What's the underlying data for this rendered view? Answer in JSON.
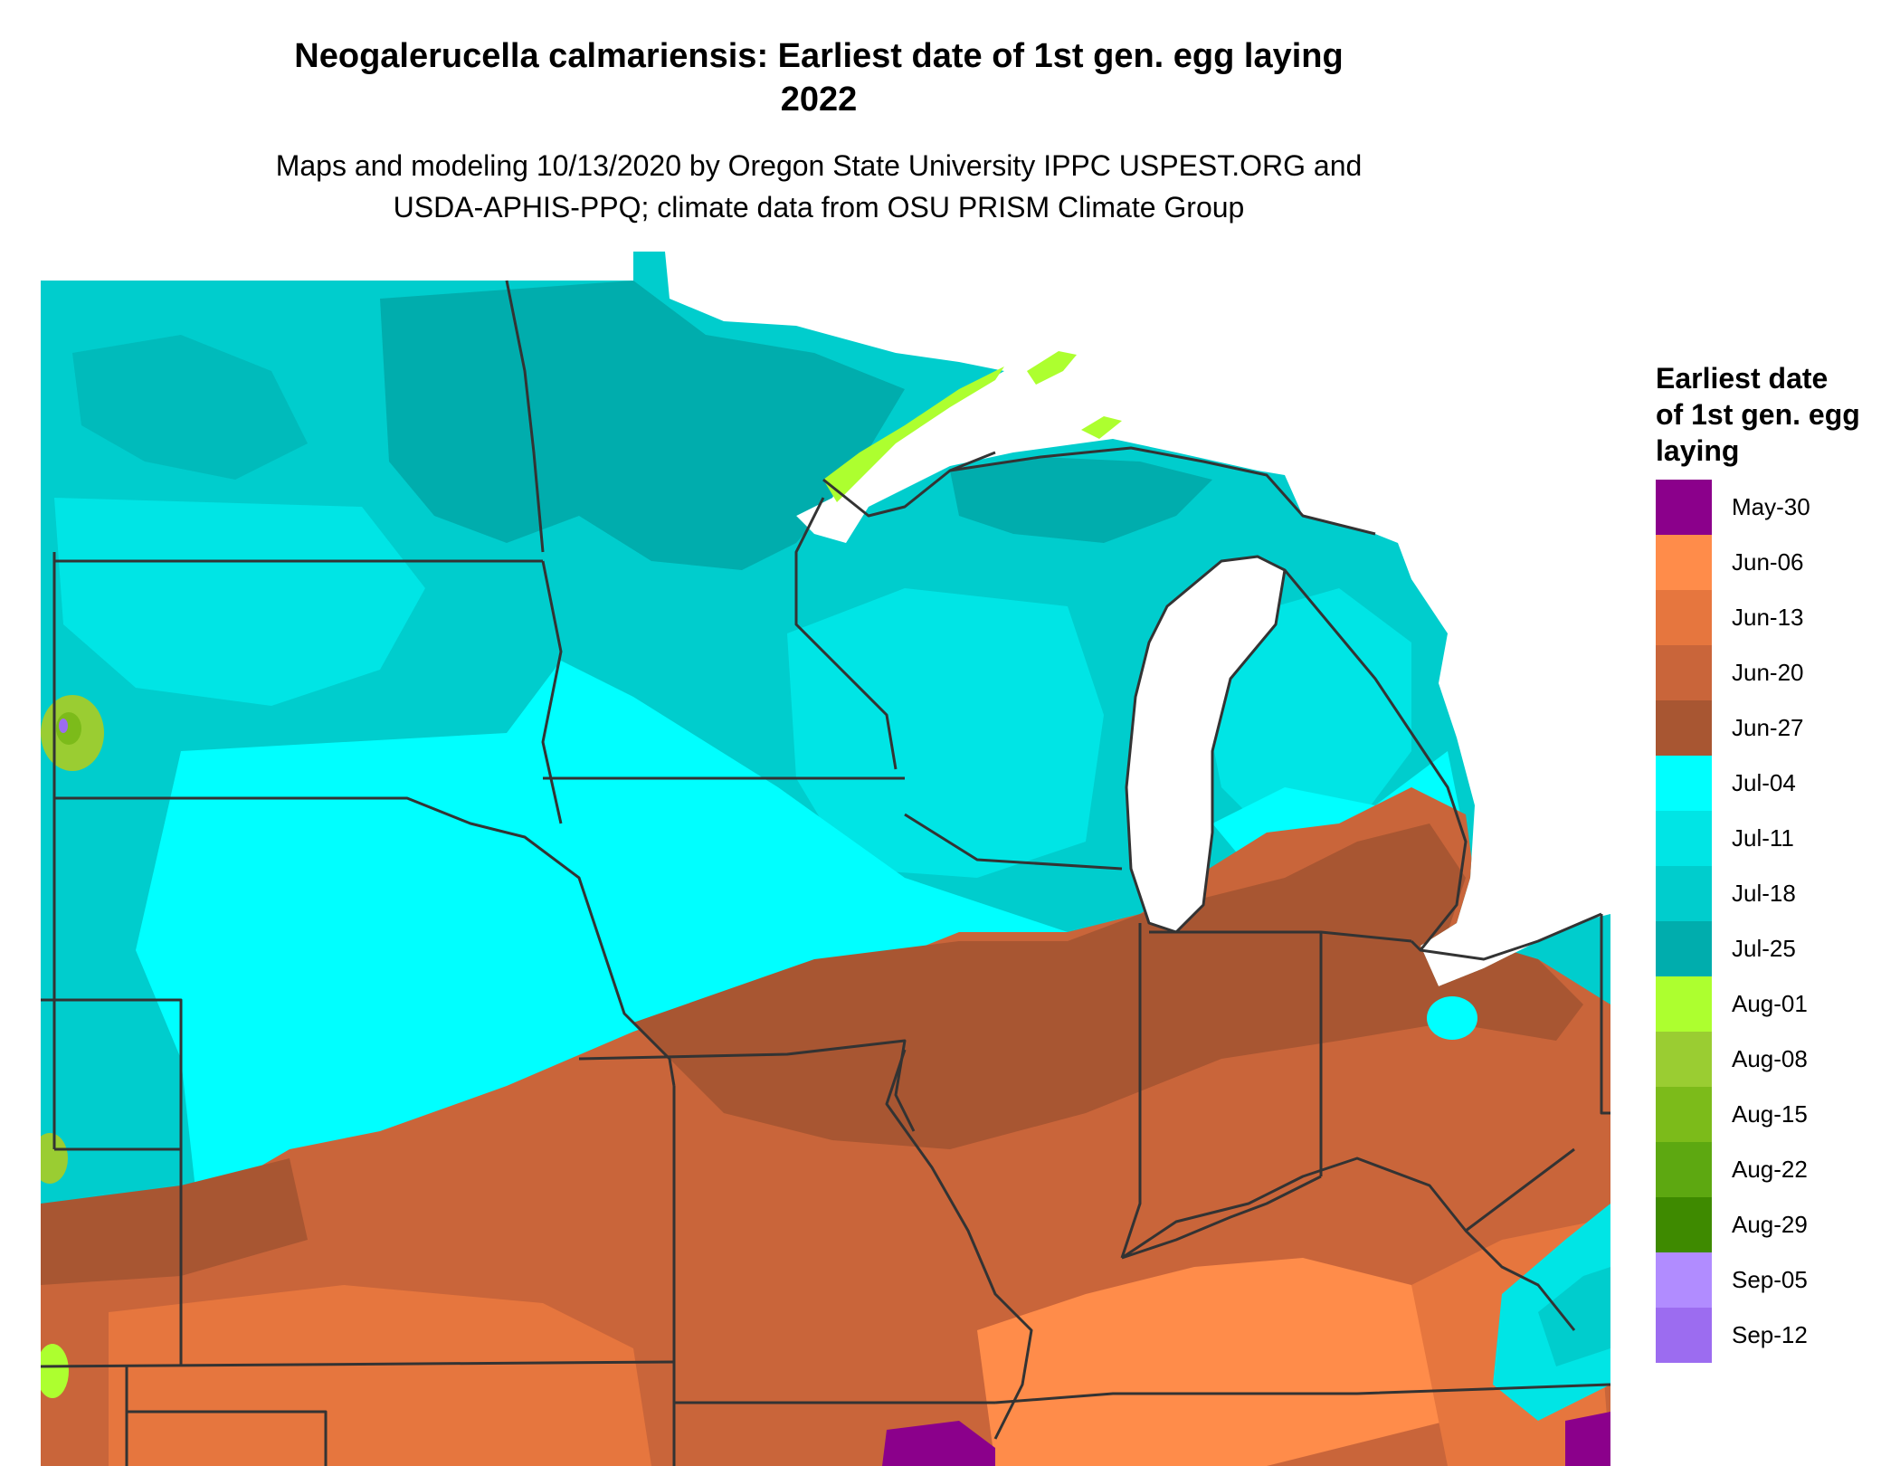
{
  "title_line1": "Neogalerucella calmariensis: Earliest date of 1st gen. egg laying",
  "title_line2": "2022",
  "subtitle_line1": "Maps and modeling 10/13/2020 by Oregon State University IPPC USPEST.ORG and",
  "subtitle_line2": "USDA-APHIS-PPQ; climate data from OSU PRISM Climate Group",
  "legend": {
    "title_lines": [
      "Earliest date",
      "of 1st gen. egg",
      "laying"
    ],
    "items": [
      {
        "label": "May-30",
        "color": "#8b008b"
      },
      {
        "label": "Jun-06",
        "color": "#ff8c4a"
      },
      {
        "label": "Jun-13",
        "color": "#e6763e"
      },
      {
        "label": "Jun-20",
        "color": "#c9653a"
      },
      {
        "label": "Jun-27",
        "color": "#a85632"
      },
      {
        "label": "Jul-04",
        "color": "#00ffff"
      },
      {
        "label": "Jul-11",
        "color": "#00e5e5"
      },
      {
        "label": "Jul-18",
        "color": "#00cdcd"
      },
      {
        "label": "Jul-25",
        "color": "#00adad"
      },
      {
        "label": "Aug-01",
        "color": "#adff2f"
      },
      {
        "label": "Aug-08",
        "color": "#9acd32"
      },
      {
        "label": "Aug-15",
        "color": "#7cbb1a"
      },
      {
        "label": "Aug-22",
        "color": "#5da811"
      },
      {
        "label": "Aug-29",
        "color": "#3e8a00"
      },
      {
        "label": "Sep-05",
        "color": "#b18cff"
      },
      {
        "label": "Sep-12",
        "color": "#9c6cf0"
      }
    ]
  }
}
